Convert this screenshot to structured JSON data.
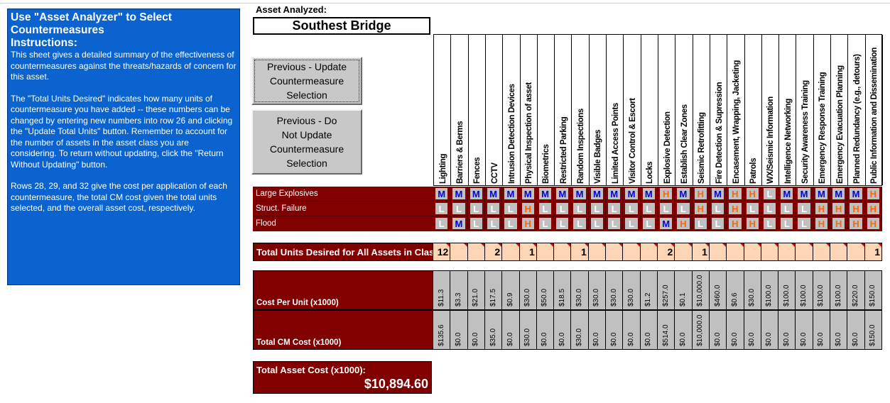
{
  "instructions": {
    "title": "Use \"Asset Analyzer\" to Select Countermeasures",
    "subtitle": "Instructions:",
    "para1": "This sheet gives a detailed summary of the effectiveness of countermeasures against the threats/hazards of concern for this asset.",
    "para2": "The \"Total Units Desired\" indicates how many units of countermeasure you have added -- these numbers can be changed by entering new numbers into row 26 and clicking the \"Update Total Units\" button. Remember to account for the number of assets in the asset class you are considering. To return without updating, click the \"Return Without Updating\" button.",
    "para3": "Rows 28, 29, and 32 give the cost per application of each countermeasure, the total CM cost given the total units selected, and the overall asset cost, respectively."
  },
  "asset": {
    "label": "Asset Analyzed:",
    "name": "Southest Bridge"
  },
  "buttons": {
    "update": "Previous - Update Countermeasure Selection",
    "no_update": "Previous - Do Not Update Countermeasure Selection"
  },
  "countermeasures": [
    "Lighting",
    "Barriers & Berms",
    "Fences",
    "CCTV",
    "Intrusion Detection Devices",
    "Physical Inspection of asset",
    "Biometrics",
    "Restricted Parking",
    "Random Inspections",
    "Visible Badges",
    "Limited Access Points",
    "Visitor Control & Escort",
    "Locks",
    "Explosive Detection",
    "Establish Clear Zones",
    "Seismic Retrofitting",
    "Fire Detection & Supression",
    "Encasement, Wrapping, Jacketing",
    "Patrols",
    "WX/Seismic Information",
    "Intelligence Networking",
    "Security Awareness Training",
    "Emergency Response Training",
    "Emergency Evacuation Planning",
    "Planned Redundancy (e.g., detours)",
    "Public Information and Dissemination"
  ],
  "threats": [
    {
      "label": "Large Explosives",
      "levels": [
        "M",
        "M",
        "M",
        "M",
        "M",
        "M",
        "M",
        "M",
        "M",
        "M",
        "M",
        "M",
        "M",
        "H",
        "M",
        "H",
        "M",
        "H",
        "H",
        "L",
        "M",
        "M",
        "M",
        "M",
        "M",
        "H"
      ]
    },
    {
      "label": "Struct. Failure",
      "levels": [
        "L",
        "L",
        "L",
        "L",
        "L",
        "H",
        "L",
        "L",
        "L",
        "L",
        "L",
        "L",
        "L",
        "L",
        "L",
        "H",
        "L",
        "H",
        "L",
        "L",
        "L",
        "L",
        "H",
        "H",
        "H",
        "H"
      ]
    },
    {
      "label": "Flood",
      "levels": [
        "L",
        "M",
        "L",
        "L",
        "L",
        "H",
        "L",
        "L",
        "L",
        "L",
        "L",
        "L",
        "L",
        "M",
        "H",
        "L",
        "L",
        "H",
        "H",
        "L",
        "L",
        "L",
        "H",
        "H",
        "H",
        "H"
      ]
    }
  ],
  "units": {
    "label": "Total Units Desired for All Assets in Class",
    "values": [
      "12",
      "",
      "",
      "2",
      "",
      "1",
      "",
      "",
      "1",
      "",
      "",
      "",
      "",
      "2",
      "",
      "1",
      "",
      "",
      "",
      "",
      "",
      "",
      "",
      "",
      "",
      "1"
    ]
  },
  "cost_per_unit": {
    "label": "Cost Per Unit (x1000)",
    "values": [
      "$11.3",
      "$3.3",
      "$21.0",
      "$17.5",
      "$0.9",
      "$30.0",
      "$50.0",
      "$18.5",
      "$30.0",
      "$30.0",
      "$30.0",
      "$30.0",
      "$1.2",
      "$257.0",
      "$0.1",
      "$10,000.0",
      "$460.0",
      "$0.6",
      "$30.0",
      "$100.0",
      "$100.0",
      "$100.0",
      "$100.0",
      "$100.0",
      "$220.0",
      "$150.0"
    ]
  },
  "total_cm_cost": {
    "label": "Total CM Cost (x1000)",
    "values": [
      "$135.6",
      "$0.0",
      "$0.0",
      "$35.0",
      "$0.0",
      "$30.0",
      "$0.0",
      "$0.0",
      "$30.0",
      "$0.0",
      "$0.0",
      "$0.0",
      "$0.0",
      "$514.0",
      "$0.0",
      "$10,000.0",
      "$0.0",
      "$0.0",
      "$0.0",
      "$0.0",
      "$0.0",
      "$0.0",
      "$0.0",
      "$0.0",
      "$0.0",
      "$150.0"
    ]
  },
  "asset_cost": {
    "label": "Total Asset Cost (x1000):",
    "value": "$10,894.60"
  },
  "colors": {
    "panel_blue": "#0a63cf",
    "maroon": "#800000",
    "level_M": "#0000e0",
    "level_H": "#ff6600",
    "level_L": "#ffffff",
    "units_fill": "#fcd5b4"
  }
}
